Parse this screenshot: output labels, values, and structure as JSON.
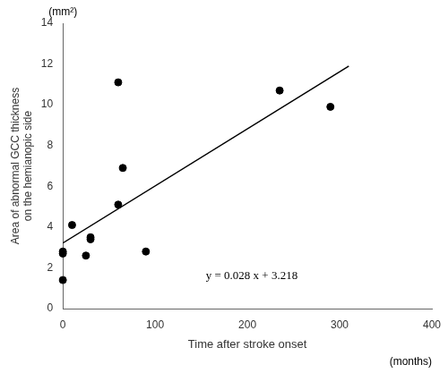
{
  "chart_data": {
    "type": "scatter",
    "xlabel": "Time after stroke onset",
    "ylabel": [
      "Area of abnormal GCC thickness",
      "on the hemianopic side"
    ],
    "annotations": [
      {
        "text": "y = 0.028 x + 3.218",
        "x": 155,
        "y": 1.3
      },
      {
        "text": "(months)",
        "axis": "x"
      },
      {
        "text": "(mm²)",
        "axis": "y"
      }
    ],
    "series": [
      {
        "type": "scatter",
        "color": "#000000",
        "marker": "circle",
        "x": [
          0,
          0,
          0,
          10,
          25,
          30,
          30,
          60,
          60,
          65,
          90,
          235,
          290
        ],
        "values": [
          1.4,
          2.7,
          2.8,
          4.1,
          2.6,
          3.4,
          3.5,
          5.1,
          11.1,
          6.9,
          2.8,
          10.7,
          9.9
        ]
      },
      {
        "type": "line",
        "color": "#000000",
        "line_style": "solid",
        "x": [
          0,
          310
        ],
        "values": [
          3.218,
          11.898
        ]
      }
    ],
    "xlim": [
      0,
      400
    ],
    "ylim": [
      0,
      14
    ],
    "xticks": [
      0,
      100,
      200,
      300,
      400
    ],
    "yticks": [
      0,
      2,
      4,
      6,
      8,
      10,
      12,
      14
    ],
    "grid": false,
    "background_color": "#ffffff"
  }
}
